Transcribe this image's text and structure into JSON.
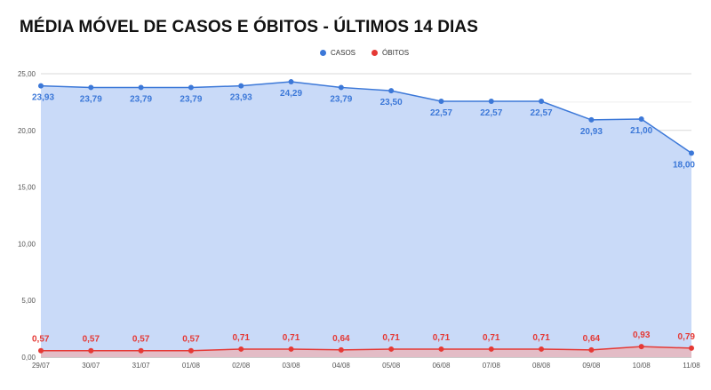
{
  "chart_data": {
    "type": "area",
    "title": "MÉDIA MÓVEL DE CASOS E ÓBITOS - ÚLTIMOS 14 DIAS",
    "categories": [
      "29/07",
      "30/07",
      "31/07",
      "01/08",
      "02/08",
      "03/08",
      "04/08",
      "05/08",
      "06/08",
      "07/08",
      "08/08",
      "09/08",
      "10/08",
      "11/08"
    ],
    "series": [
      {
        "name": "CASOS",
        "color": "#3c78d8",
        "fill": "#c9daf8",
        "values": [
          23.93,
          23.79,
          23.79,
          23.79,
          23.93,
          24.29,
          23.79,
          23.5,
          22.57,
          22.57,
          22.57,
          20.93,
          21.0,
          18.0
        ],
        "labels": [
          "23,93",
          "23,79",
          "23,79",
          "23,79",
          "23,93",
          "24,29",
          "23,79",
          "23,50",
          "22,57",
          "22,57",
          "22,57",
          "20,93",
          "21,00",
          "18,00"
        ]
      },
      {
        "name": "ÓBITOS",
        "color": "#e53935",
        "fill": "#e6b8c0",
        "values": [
          0.57,
          0.57,
          0.57,
          0.57,
          0.71,
          0.71,
          0.64,
          0.71,
          0.71,
          0.71,
          0.71,
          0.64,
          0.93,
          0.79
        ],
        "labels": [
          "0,57",
          "0,57",
          "0,57",
          "0,57",
          "0,71",
          "0,71",
          "0,64",
          "0,71",
          "0,71",
          "0,71",
          "0,71",
          "0,64",
          "0,93",
          "0,79"
        ]
      }
    ],
    "yticks": [
      0,
      5,
      10,
      15,
      20,
      25
    ],
    "ytick_labels": [
      "0,00",
      "5,00",
      "10,00",
      "15,00",
      "20,00",
      "25,00"
    ],
    "ylim": [
      0,
      25
    ],
    "grid": true,
    "legend": "top-center"
  }
}
